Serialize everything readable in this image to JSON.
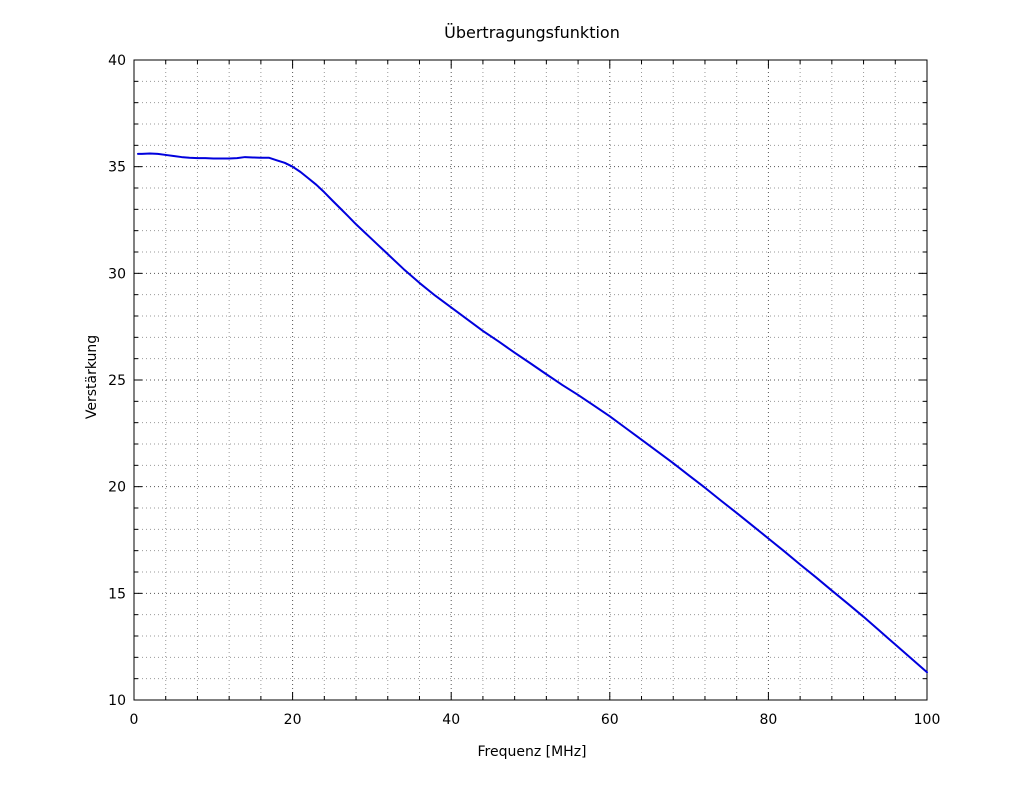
{
  "chart_data": {
    "type": "line",
    "title": "Übertragungsfunktion",
    "xlabel": "Frequenz [MHz]",
    "ylabel": "Verstärkung",
    "xlim": [
      0,
      100
    ],
    "ylim": [
      10,
      40
    ],
    "xticks": [
      0,
      20,
      40,
      60,
      80,
      100
    ],
    "yticks": [
      10,
      15,
      20,
      25,
      30,
      35,
      40
    ],
    "x_minor_step": 4,
    "y_minor_step": 1,
    "grid": true,
    "legend": "none",
    "series": [
      {
        "color": "#0000dd",
        "x": [
          0.5,
          1,
          2,
          3,
          4,
          5,
          6,
          7,
          8,
          9,
          10,
          11,
          12,
          13,
          14,
          15,
          16,
          17,
          18,
          19,
          20,
          21,
          22,
          23,
          24,
          25,
          26,
          27,
          28,
          29,
          30,
          32,
          34,
          36,
          38,
          40,
          42,
          44,
          46,
          48,
          50,
          52,
          54,
          56,
          58,
          60,
          62,
          64,
          66,
          68,
          70,
          72,
          74,
          76,
          78,
          80,
          82,
          84,
          86,
          88,
          90,
          92,
          94,
          96,
          98,
          100
        ],
        "y": [
          35.6,
          35.6,
          35.62,
          35.6,
          35.55,
          35.5,
          35.45,
          35.42,
          35.4,
          35.4,
          35.38,
          35.38,
          35.38,
          35.4,
          35.45,
          35.43,
          35.42,
          35.42,
          35.3,
          35.18,
          35.0,
          34.75,
          34.45,
          34.15,
          33.8,
          33.42,
          33.05,
          32.68,
          32.3,
          31.95,
          31.6,
          30.9,
          30.2,
          29.55,
          28.95,
          28.4,
          27.85,
          27.3,
          26.8,
          26.28,
          25.78,
          25.27,
          24.77,
          24.3,
          23.8,
          23.3,
          22.75,
          22.2,
          21.65,
          21.1,
          20.52,
          19.95,
          19.35,
          18.77,
          18.17,
          17.57,
          16.97,
          16.35,
          15.75,
          15.13,
          14.52,
          13.9,
          13.25,
          12.6,
          11.95,
          11.3
        ]
      }
    ]
  }
}
